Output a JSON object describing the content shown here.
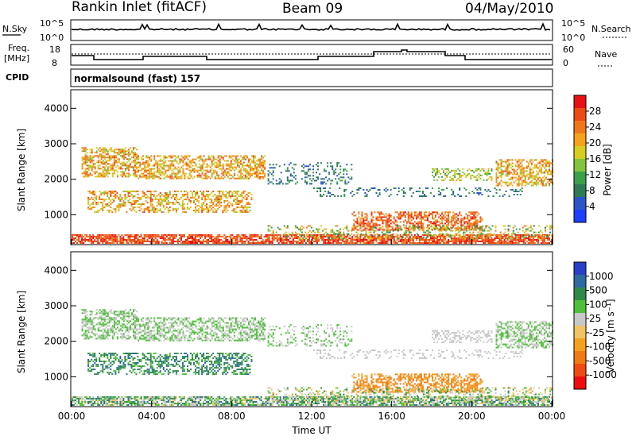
{
  "header": {
    "station": "Rankin Inlet (fitACF)",
    "beam": "Beam 09",
    "date": "04/May/2010"
  },
  "top_panels": {
    "nsky_label": "N.Sky",
    "nsky_ticks": [
      "10^5",
      "10^0"
    ],
    "nsearch_label": "N.Search",
    "nsearch_ticks": [
      "10^5",
      "10^0"
    ],
    "freq_label_1": "Freq.",
    "freq_label_2": "[MHz]",
    "freq_ticks": [
      "18",
      "8"
    ],
    "nave_label": "Nave",
    "nave_ticks": [
      "60",
      "0"
    ],
    "cpid_label": "CPID",
    "cpid_text": "normalsound (fast) 157"
  },
  "colors": {
    "power_scale": [
      "#1f3fff",
      "#2a55c8",
      "#2e7a56",
      "#3aa04a",
      "#84c43c",
      "#d8cc22",
      "#f6a21a",
      "#f07818",
      "#ee4a14",
      "#e81010"
    ],
    "velocity_scale": [
      "#f00c0c",
      "#f04a10",
      "#f27a14",
      "#f6a020",
      "#f0c460",
      "#c8c8c8",
      "#4fbf3a",
      "#2f8a4a",
      "#2e6aa0",
      "#2a3fc8"
    ]
  },
  "chart_data": [
    {
      "type": "heatmap",
      "title": "",
      "xlabel": "",
      "ylabel": "Slant Range [km]",
      "x_range_hours": [
        0,
        24
      ],
      "y_range_km": [
        180,
        4500
      ],
      "y_ticks": [
        "1000",
        "2000",
        "3000",
        "4000"
      ],
      "colorbar": {
        "label": "Power [dB]",
        "range": [
          0,
          30
        ],
        "ticks": [
          "4",
          "8",
          "12",
          "16",
          "20",
          "24",
          "28"
        ]
      }
    },
    {
      "type": "heatmap",
      "title": "",
      "xlabel": "Time UT",
      "ylabel": "Slant Range [km]",
      "x_ticks": [
        "00:00",
        "04:00",
        "08:00",
        "12:00",
        "16:00",
        "20:00",
        "00:00"
      ],
      "x_range_hours": [
        0,
        24
      ],
      "y_range_km": [
        180,
        4500
      ],
      "y_ticks": [
        "1000",
        "2000",
        "3000",
        "4000"
      ],
      "colorbar": {
        "label": "Velocity [m s⁻¹]",
        "ticks": [
          "1000",
          "500",
          "100",
          "25",
          "-25",
          "-100",
          "-500",
          "-1000"
        ]
      }
    }
  ]
}
